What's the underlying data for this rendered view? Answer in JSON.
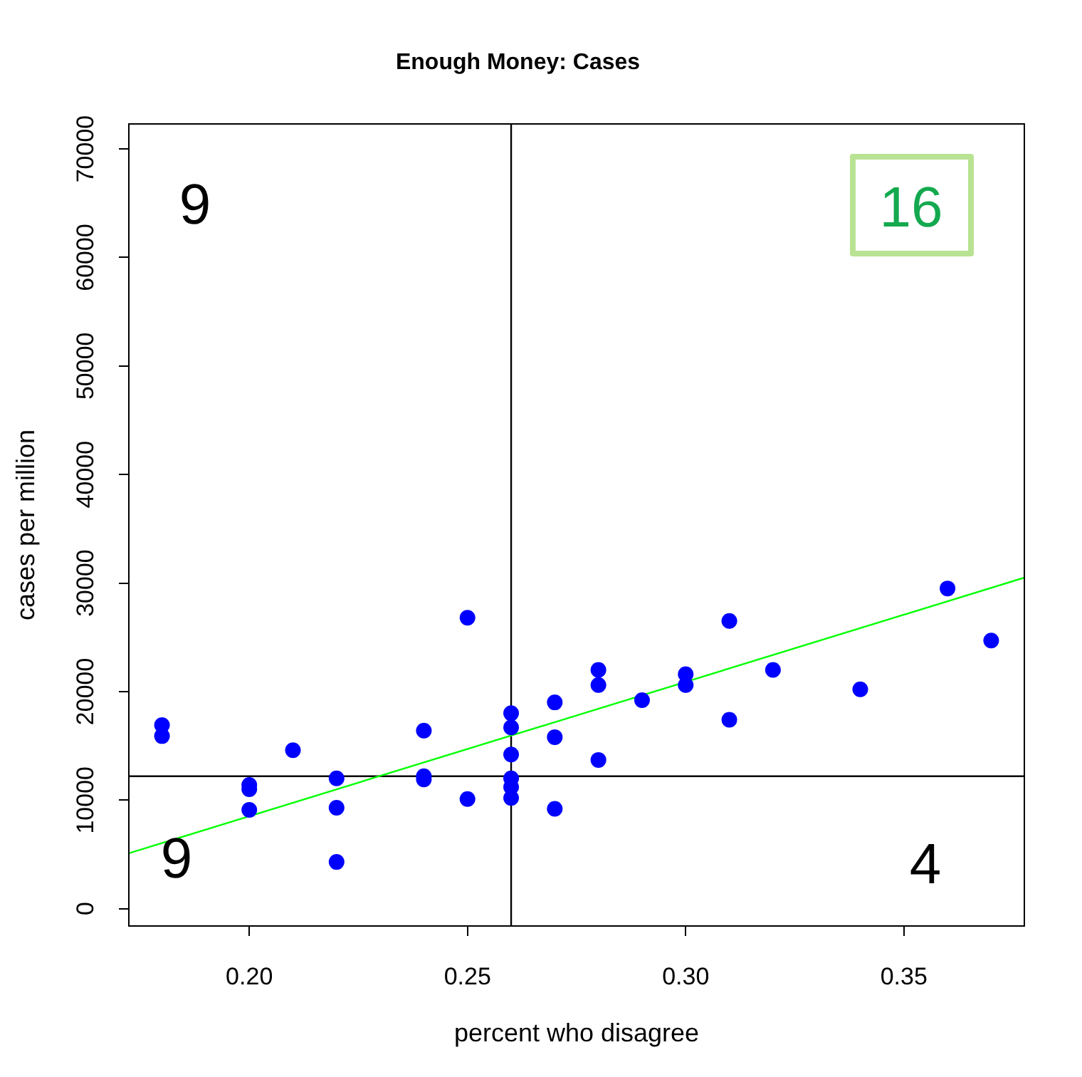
{
  "chart_data": {
    "type": "scatter",
    "title": "Enough Money: Cases",
    "xlabel": "percent who disagree",
    "ylabel": "cases per million",
    "xlim": [
      0.1724,
      0.3776
    ],
    "xticks": [
      {
        "value": 0.2,
        "label": "0.20"
      },
      0.25,
      {
        "value": 0.3,
        "label": "0.30"
      },
      0.35
    ],
    "ylim": [
      -1600,
      72300
    ],
    "yticks": [
      0,
      10000,
      20000,
      30000,
      40000,
      50000,
      60000,
      70000
    ],
    "grid": false,
    "legend": false,
    "marker": "circle",
    "series": [
      {
        "color": "#0000ff",
        "x": [
          0.18,
          0.18,
          0.2,
          0.2,
          0.2,
          0.21,
          0.22,
          0.22,
          0.22,
          0.24,
          0.24,
          0.24,
          0.25,
          0.25,
          0.26,
          0.26,
          0.26,
          0.26,
          0.26,
          0.26,
          0.27,
          0.27,
          0.27,
          0.28,
          0.28,
          0.28,
          0.29,
          0.3,
          0.3,
          0.31,
          0.31,
          0.32,
          0.34,
          0.36,
          0.37
        ],
        "values": [
          16900,
          15900,
          11400,
          11000,
          9100,
          14600,
          12000,
          9300,
          4300,
          16400,
          12200,
          11900,
          26800,
          10100,
          18000,
          16700,
          14200,
          12000,
          11200,
          10200,
          19000,
          15800,
          9200,
          22000,
          20600,
          13700,
          19200,
          21600,
          20600,
          26500,
          17400,
          22000,
          20200,
          29500,
          24700
        ]
      },
      {
        "type": "line",
        "color": "#00ff00",
        "marker": "none",
        "x": [
          0.1724,
          0.3776
        ],
        "values": [
          5100,
          30500
        ]
      }
    ],
    "ref_lines": [
      {
        "axis": "x",
        "value": 0.26,
        "color": "#000000"
      },
      {
        "axis": "y",
        "value": 12200,
        "color": "#000000"
      }
    ],
    "annotations": [
      "9",
      "16",
      "9",
      "4"
    ]
  }
}
